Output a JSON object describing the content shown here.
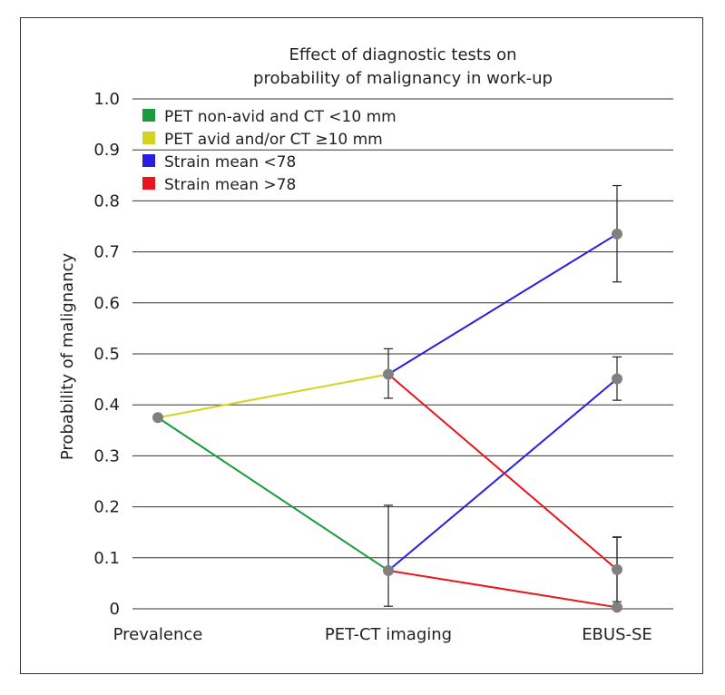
{
  "chart_data": {
    "type": "line",
    "title": [
      "Effect of diagnostic tests on",
      "probability of malignancy in work-up"
    ],
    "xlabel": "",
    "ylabel": "Probability of malignancy",
    "categories": [
      "Prevalence",
      "PET-CT imaging",
      "EBUS-SE"
    ],
    "ylim": [
      0,
      1.0
    ],
    "yticks": [
      "0",
      "0.1",
      "0.2",
      "0.3",
      "0.4",
      "0.5",
      "0.6",
      "0.7",
      "0.8",
      "0.9",
      "1.0"
    ],
    "grid": true,
    "legend_position": "top-left",
    "legend": [
      {
        "label": "PET non-avid and CT <10 mm",
        "color": "#1a9a3a"
      },
      {
        "label": "PET avid and/or CT ≥10 mm",
        "color": "#d4d420"
      },
      {
        "label": "Strain mean <78",
        "color": "#2a1ee0"
      },
      {
        "label": "Strain mean >78",
        "color": "#e8141e"
      }
    ],
    "points": [
      {
        "x": 0,
        "y": 0.375
      },
      {
        "x": 1,
        "y": 0.46,
        "err": [
          0.413,
          0.51
        ]
      },
      {
        "x": 1,
        "y": 0.075,
        "err": [
          0.005,
          0.203
        ]
      },
      {
        "x": 2,
        "y": 0.735,
        "err": [
          0.641,
          0.83
        ]
      },
      {
        "x": 2,
        "y": 0.451,
        "err": [
          0.409,
          0.494
        ]
      },
      {
        "x": 2,
        "y": 0.077,
        "err": [
          0.014,
          0.141
        ]
      },
      {
        "x": 2,
        "y": 0.003,
        "err": [
          0.0,
          0.14
        ]
      }
    ],
    "segments": [
      {
        "color": "#1a9a3a",
        "from": [
          0,
          0.375
        ],
        "to": [
          1,
          0.075
        ]
      },
      {
        "color": "#d4d420",
        "from": [
          0,
          0.375
        ],
        "to": [
          1,
          0.46
        ]
      },
      {
        "color": "#2a1ee0",
        "from": [
          1,
          0.46
        ],
        "to": [
          2,
          0.735
        ]
      },
      {
        "color": "#2a1ee0",
        "from": [
          1,
          0.075
        ],
        "to": [
          2,
          0.451
        ]
      },
      {
        "color": "#e8141e",
        "from": [
          1,
          0.46
        ],
        "to": [
          2,
          0.077
        ]
      },
      {
        "color": "#e8141e",
        "from": [
          1,
          0.075
        ],
        "to": [
          2,
          0.003
        ]
      }
    ],
    "point_color": "#808080",
    "errorbar_color": "#222222"
  }
}
